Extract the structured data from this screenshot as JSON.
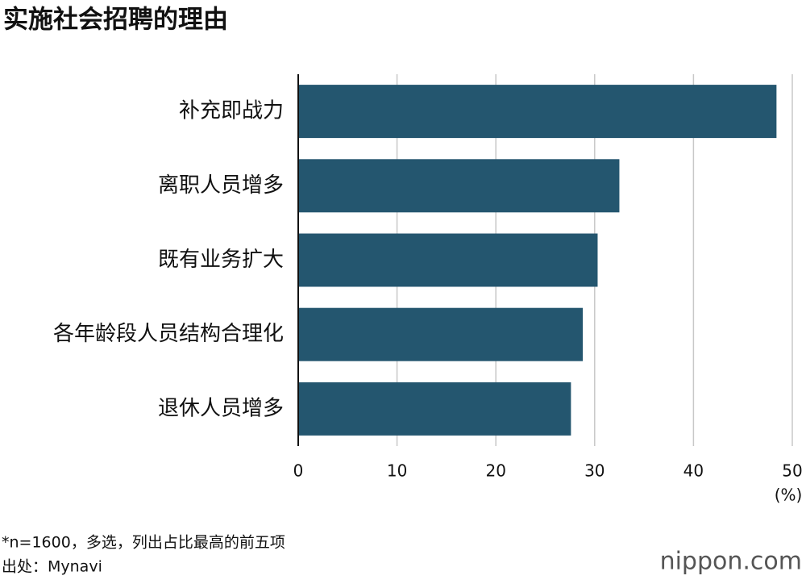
{
  "chart_data": {
    "type": "bar",
    "orientation": "horizontal",
    "title": "实施社会招聘的理由",
    "categories": [
      "补充即战力",
      "离职人员增多",
      "既有业务扩大",
      "各年龄段人员结构合理化",
      "退休人员增多"
    ],
    "values": [
      48.4,
      32.5,
      30.3,
      28.8,
      27.6
    ],
    "color": "#24566f",
    "xlim": [
      0,
      50
    ],
    "xticks": [
      0,
      10,
      20,
      30,
      40,
      50
    ],
    "x_unit": "(%)",
    "grid": true
  },
  "notes": [
    "*n=1600，多选，列出占比最高的前五项",
    "出处：Mynavi"
  ],
  "logo": "nippon.com"
}
